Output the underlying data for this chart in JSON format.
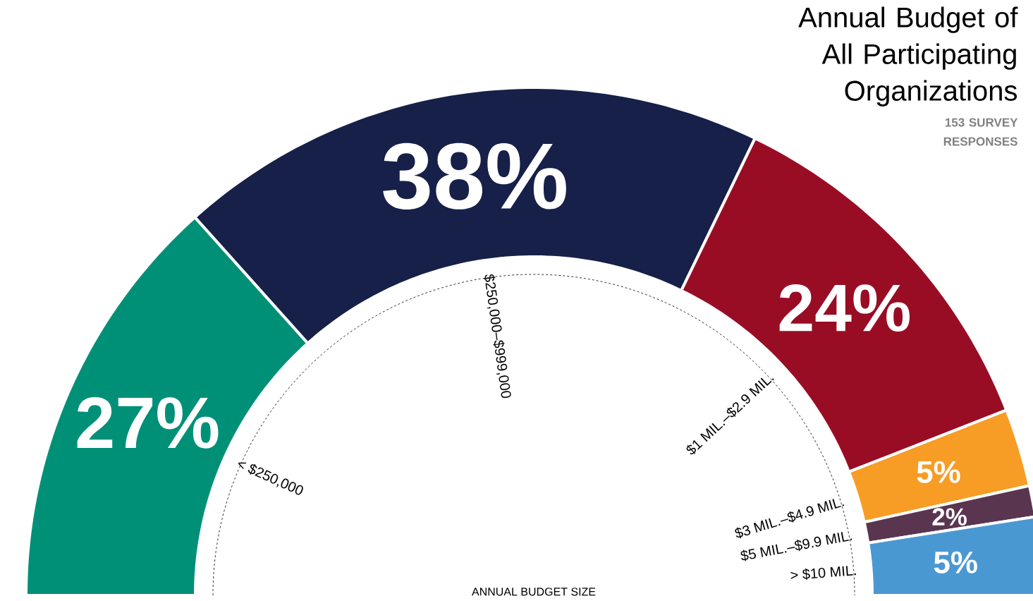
{
  "chart_data": {
    "type": "donut",
    "title": "Annual Budget of All Participating Organizations",
    "subtitle": "153 SURVEY RESPONSES",
    "xlabel": "ANNUAL BUDGET SIZE",
    "categories": [
      "< $250,000",
      "$250,000–$999,000",
      "$1 MIL.–$2.9 MIL.",
      "$3 MIL.–$4.9 MIL.",
      "$5 MIL.–$9.9 MIL.",
      "> $10 MIL."
    ],
    "values": [
      27,
      38,
      24,
      5,
      2,
      5
    ],
    "colors": [
      "#009078",
      "#162048",
      "#990d24",
      "#f79d25",
      "#5a3550",
      "#4a98d2"
    ],
    "value_labels": [
      "27%",
      "38%",
      "24%",
      "5%",
      "2%",
      "5%"
    ]
  }
}
